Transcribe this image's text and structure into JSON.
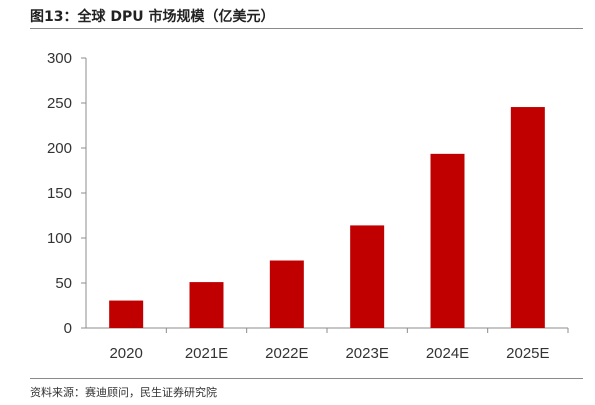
{
  "figure": {
    "title": "图13：全球 DPU 市场规模（亿美元）",
    "source": "资料来源：赛迪顾问，民生证券研究院"
  },
  "chart_data": {
    "type": "bar",
    "title": "图13：全球 DPU 市场规模（亿美元）",
    "categories": [
      "2020",
      "2021E",
      "2022E",
      "2023E",
      "2024E",
      "2025E"
    ],
    "values": [
      30.5,
      51,
      75,
      114,
      193.5,
      245.5
    ],
    "yticks": [
      0,
      50,
      100,
      150,
      200,
      250,
      300
    ],
    "ylim": [
      0,
      300
    ],
    "xlabel": "",
    "ylabel": "",
    "grid": false,
    "legend": "none",
    "bar_color": "#c00000"
  }
}
